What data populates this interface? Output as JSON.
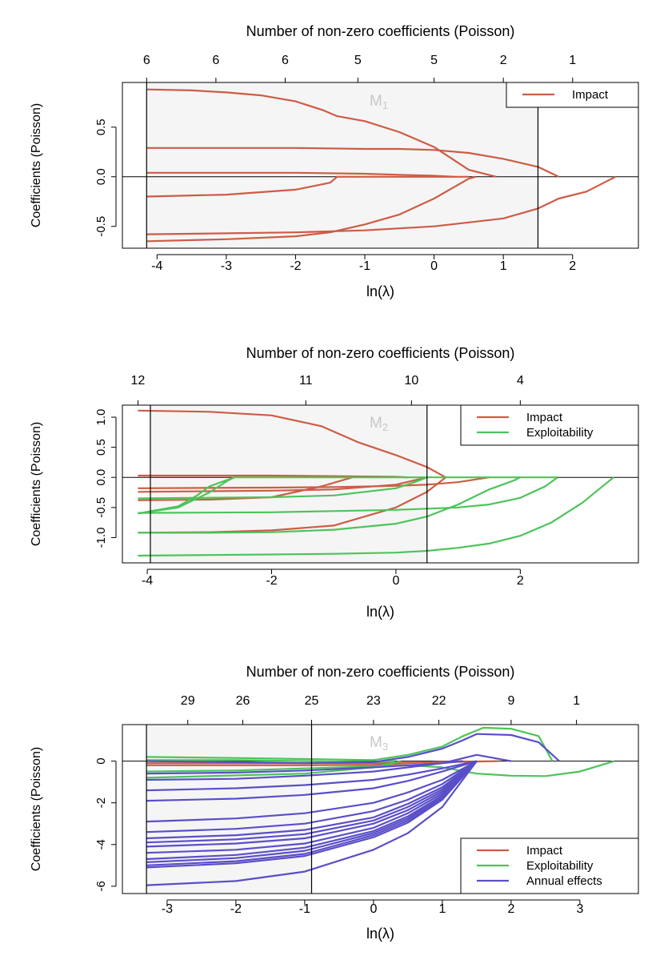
{
  "chart_data": [
    {
      "type": "line",
      "title": "Number of non-zero coefficients (Poisson)",
      "panel_label": {
        "main": "M",
        "sub": "1"
      },
      "xlabel": "ln(λ)",
      "ylabel": "Coefficients (Poisson)",
      "xlim": [
        -4.5,
        2.95
      ],
      "ylim": [
        -0.72,
        0.95
      ],
      "xticks": [
        -4,
        -3,
        -2,
        -1,
        0,
        1,
        2
      ],
      "yticks": [
        -0.5,
        0.0,
        0.5
      ],
      "ytick_labels": [
        "-0.5",
        "0.0",
        "0.5"
      ],
      "top_ticks": {
        "x": [
          -4.15,
          -3.15,
          -2.15,
          -1.1,
          0.0,
          1.0,
          2.0
        ],
        "labels": [
          "6",
          "6",
          "6",
          "5",
          "5",
          "2",
          "1"
        ]
      },
      "vlines": [
        -4.15,
        1.5
      ],
      "shaded_range": [
        -4.15,
        1.5
      ],
      "legend": [
        "Impact"
      ],
      "legend_position": "top-right",
      "series": [
        {
          "name": "Impact",
          "x": [
            -4.15,
            -3.5,
            -3,
            -2.5,
            -2,
            -1.6,
            -1.4,
            -1,
            -0.5,
            0,
            0.5,
            0.9
          ],
          "y": [
            0.88,
            0.87,
            0.85,
            0.82,
            0.76,
            0.67,
            0.61,
            0.56,
            0.45,
            0.3,
            0.07,
            0
          ]
        },
        {
          "name": "Impact",
          "x": [
            -4.15,
            -3,
            -2,
            -1,
            -0.5,
            0,
            0.5,
            1,
            1.5,
            1.8
          ],
          "y": [
            0.29,
            0.29,
            0.29,
            0.28,
            0.28,
            0.27,
            0.24,
            0.18,
            0.1,
            0
          ]
        },
        {
          "name": "Impact",
          "x": [
            -4.15,
            -3,
            -2,
            -1,
            -0.5,
            0,
            0.3
          ],
          "y": [
            0.04,
            0.04,
            0.04,
            0.03,
            0.02,
            0.01,
            0
          ]
        },
        {
          "name": "Impact",
          "x": [
            -4.15,
            -3,
            -2,
            -1.5,
            -1.4,
            0.5
          ],
          "y": [
            -0.2,
            -0.18,
            -0.13,
            -0.06,
            0,
            0
          ]
        },
        {
          "name": "Impact",
          "x": [
            -4.15,
            -3,
            -2,
            -1.5,
            -1,
            -0.5,
            0,
            0.3,
            0.5,
            0.6
          ],
          "y": [
            -0.65,
            -0.63,
            -0.6,
            -0.56,
            -0.48,
            -0.38,
            -0.22,
            -0.1,
            -0.02,
            0
          ]
        },
        {
          "name": "Impact",
          "x": [
            -4.15,
            -3,
            -2,
            -1,
            0,
            0.5,
            1,
            1.5,
            1.8,
            2.2,
            2.62
          ],
          "y": [
            -0.58,
            -0.57,
            -0.56,
            -0.54,
            -0.5,
            -0.46,
            -0.42,
            -0.32,
            -0.22,
            -0.15,
            0
          ]
        }
      ]
    },
    {
      "type": "line",
      "title": "Number of non-zero coefficients (Poisson)",
      "panel_label": {
        "main": "M",
        "sub": "2"
      },
      "xlabel": "ln(λ)",
      "ylabel": "Coefficients (Poisson)",
      "xlim": [
        -4.4,
        3.9
      ],
      "ylim": [
        -1.42,
        1.2
      ],
      "xticks": [
        -4,
        -2,
        0,
        2
      ],
      "yticks": [
        -1.0,
        -0.5,
        0.0,
        0.5,
        1.0
      ],
      "ytick_labels": [
        "-1.0",
        "-0.5",
        "0.0",
        "0.5",
        "1.0"
      ],
      "top_ticks": {
        "x": [
          -4.15,
          -1.45,
          0.25,
          2.0
        ],
        "labels": [
          "12",
          "11",
          "10",
          "4"
        ]
      },
      "vlines": [
        -3.95,
        0.5
      ],
      "shaded_range": [
        -3.95,
        0.5
      ],
      "legend": [
        "Impact",
        "Exploitability"
      ],
      "legend_position": "top-right",
      "series": [
        {
          "name": "Impact",
          "x": [
            -4.15,
            -3,
            -2,
            -1.2,
            -0.6,
            0,
            0.5,
            0.8
          ],
          "y": [
            1.11,
            1.09,
            1.03,
            0.85,
            0.58,
            0.37,
            0.17,
            0
          ]
        },
        {
          "name": "Impact",
          "x": [
            -4.15,
            -2,
            0,
            0.2
          ],
          "y": [
            0.03,
            0.03,
            0.01,
            0
          ]
        },
        {
          "name": "Impact",
          "x": [
            -4.15,
            -2,
            -1,
            0,
            0.5,
            1,
            1.5
          ],
          "y": [
            -0.18,
            -0.17,
            -0.16,
            -0.14,
            -0.12,
            -0.08,
            0
          ]
        },
        {
          "name": "Impact",
          "x": [
            -4.15,
            -3,
            -2,
            -1,
            0,
            0.5
          ],
          "y": [
            -0.24,
            -0.23,
            -0.22,
            -0.2,
            -0.12,
            0
          ]
        },
        {
          "name": "Impact",
          "x": [
            -4.15,
            -3,
            -2,
            -1.2,
            -0.7
          ],
          "y": [
            -0.38,
            -0.37,
            -0.33,
            -0.15,
            0
          ]
        },
        {
          "name": "Impact",
          "x": [
            -4.15,
            -3,
            -2,
            -1,
            -0.5,
            0,
            0.5,
            0.8
          ],
          "y": [
            -0.92,
            -0.91,
            -0.88,
            -0.8,
            -0.65,
            -0.5,
            -0.24,
            0
          ]
        },
        {
          "name": "Exploitability",
          "x": [
            -4.15,
            -3.5,
            -3,
            -2.7,
            -2.6
          ],
          "y": [
            -0.6,
            -0.5,
            -0.25,
            -0.05,
            0
          ]
        },
        {
          "name": "Exploitability",
          "x": [
            -4.15,
            -3.5,
            -3.2,
            -3,
            -2.6,
            2.6
          ],
          "y": [
            -0.6,
            -0.48,
            -0.3,
            -0.15,
            0,
            0
          ]
        },
        {
          "name": "Exploitability",
          "x": [
            -4.15,
            -2,
            -1,
            0,
            0.3,
            0.5
          ],
          "y": [
            -0.35,
            -0.33,
            -0.3,
            -0.18,
            -0.08,
            0
          ]
        },
        {
          "name": "Exploitability",
          "x": [
            -4.15,
            -2,
            -1,
            0,
            1,
            1.5,
            2,
            2.4,
            2.6
          ],
          "y": [
            -0.59,
            -0.58,
            -0.56,
            -0.54,
            -0.5,
            -0.45,
            -0.34,
            -0.15,
            0
          ]
        },
        {
          "name": "Exploitability",
          "x": [
            -4.15,
            -3,
            -2,
            -1,
            0,
            0.5,
            1,
            1.5,
            1.9,
            2.0
          ],
          "y": [
            -0.92,
            -0.92,
            -0.91,
            -0.87,
            -0.77,
            -0.65,
            -0.45,
            -0.2,
            -0.05,
            0
          ]
        },
        {
          "name": "Exploitability",
          "x": [
            -4.15,
            -3,
            -2,
            -1,
            0,
            0.5,
            1,
            1.5,
            2,
            2.5,
            3,
            3.5
          ],
          "y": [
            -1.3,
            -1.29,
            -1.28,
            -1.27,
            -1.25,
            -1.22,
            -1.17,
            -1.1,
            -0.97,
            -0.75,
            -0.42,
            0
          ]
        }
      ]
    },
    {
      "type": "line",
      "title": "Number of non-zero coefficients (Poisson)",
      "panel_label": {
        "main": "M",
        "sub": "3"
      },
      "xlabel": "ln(λ)",
      "ylabel": "Coefficients (Poisson)",
      "xlim": [
        -3.65,
        3.85
      ],
      "ylim": [
        -6.35,
        1.75
      ],
      "xticks": [
        -3,
        -2,
        -1,
        0,
        1,
        2,
        3
      ],
      "yticks": [
        -6,
        -4,
        -2,
        0
      ],
      "ytick_labels": [
        "-6",
        "-4",
        "-2",
        "0"
      ],
      "top_ticks": {
        "x": [
          -2.7,
          -1.9,
          -0.9,
          0.0,
          0.95,
          2.0,
          2.95
        ],
        "labels": [
          "29",
          "26",
          "25",
          "23",
          "22",
          "9",
          "1"
        ]
      },
      "vlines": [
        -3.3,
        -0.9
      ],
      "shaded_range": [
        -3.3,
        -0.9
      ],
      "legend": [
        "Impact",
        "Exploitability",
        "Annual effects"
      ],
      "legend_position": "bottom-right",
      "series": [
        {
          "name": "Impact",
          "x": [
            -3.3,
            -1,
            0,
            1,
            1.8
          ],
          "y": [
            -0.1,
            -0.1,
            -0.1,
            -0.05,
            0
          ]
        },
        {
          "name": "Impact",
          "x": [
            -3.3,
            -1,
            0,
            0.5,
            1.3
          ],
          "y": [
            -0.2,
            -0.2,
            -0.18,
            -0.1,
            0
          ]
        },
        {
          "name": "Exploitability",
          "x": [
            -3.3,
            -2,
            -1,
            0,
            0.5,
            1,
            1.3,
            1.6,
            2,
            2.4,
            2.6
          ],
          "y": [
            0.2,
            0.15,
            0.1,
            0.05,
            0.3,
            0.7,
            1.2,
            1.6,
            1.55,
            1.2,
            0
          ]
        },
        {
          "name": "Exploitability",
          "x": [
            -3.3,
            -2,
            -1,
            0,
            0.5,
            1,
            1.5,
            2,
            2.5,
            3,
            3.5
          ],
          "y": [
            -0.5,
            -0.45,
            -0.35,
            -0.25,
            -0.2,
            -0.3,
            -0.6,
            -0.7,
            -0.72,
            -0.5,
            0
          ]
        },
        {
          "name": "Exploitability",
          "x": [
            -3.3,
            -1,
            0,
            0.4
          ],
          "y": [
            -0.8,
            -0.6,
            -0.3,
            0
          ]
        },
        {
          "name": "Exploitability",
          "x": [
            -3.3,
            -2,
            -1,
            0,
            0.3
          ],
          "y": [
            0.05,
            0.05,
            0,
            -0.05,
            0
          ]
        },
        {
          "name": "Annual effects",
          "x": [
            -3.3,
            -2,
            -1,
            0,
            0.5,
            1,
            1.3,
            1.5,
            2,
            2.4,
            2.7
          ],
          "y": [
            0.0,
            -0.05,
            -0.1,
            -0.05,
            0.2,
            0.6,
            1.0,
            1.3,
            1.25,
            0.9,
            0
          ]
        },
        {
          "name": "Annual effects",
          "x": [
            -3.3,
            -2,
            -1,
            0,
            1,
            1.5,
            2
          ],
          "y": [
            -0.6,
            -0.55,
            -0.45,
            -0.3,
            -0.1,
            0.3,
            0
          ]
        },
        {
          "name": "Annual effects",
          "x": [
            -3.3,
            -2,
            -1,
            0,
            0.5,
            1,
            1.3
          ],
          "y": [
            -0.9,
            -0.85,
            -0.7,
            -0.5,
            -0.3,
            -0.1,
            0
          ]
        },
        {
          "name": "Annual effects",
          "x": [
            -3.3,
            -2,
            -1,
            0,
            0.5,
            1,
            1.5
          ],
          "y": [
            -1.4,
            -1.3,
            -1.15,
            -0.9,
            -0.65,
            -0.35,
            0
          ]
        },
        {
          "name": "Annual effects",
          "x": [
            -3.3,
            -2,
            -1,
            0,
            0.5,
            1,
            1.5
          ],
          "y": [
            -1.9,
            -1.8,
            -1.62,
            -1.3,
            -0.95,
            -0.5,
            0
          ]
        },
        {
          "name": "Annual effects",
          "x": [
            -3.3,
            -2,
            -1,
            0,
            0.5,
            1,
            1.5
          ],
          "y": [
            -2.9,
            -2.75,
            -2.5,
            -2.0,
            -1.5,
            -0.9,
            0
          ]
        },
        {
          "name": "Annual effects",
          "x": [
            -3.3,
            -2,
            -1,
            0,
            0.5,
            1,
            1.5
          ],
          "y": [
            -3.4,
            -3.25,
            -3.0,
            -2.4,
            -1.85,
            -1.1,
            0
          ]
        },
        {
          "name": "Annual effects",
          "x": [
            -3.3,
            -2,
            -1,
            0,
            0.5,
            1,
            1.5
          ],
          "y": [
            -3.7,
            -3.55,
            -3.3,
            -2.7,
            -2.05,
            -1.25,
            0
          ]
        },
        {
          "name": "Annual effects",
          "x": [
            -3.3,
            -2,
            -1,
            0,
            0.5,
            1,
            1.5
          ],
          "y": [
            -3.9,
            -3.75,
            -3.5,
            -2.85,
            -2.2,
            -1.35,
            0
          ]
        },
        {
          "name": "Annual effects",
          "x": [
            -3.3,
            -2,
            -1,
            0,
            0.5,
            1,
            1.5
          ],
          "y": [
            -4.1,
            -3.95,
            -3.7,
            -3.0,
            -2.35,
            -1.45,
            0
          ]
        },
        {
          "name": "Annual effects",
          "x": [
            -3.3,
            -2,
            -1,
            0,
            0.5,
            1,
            1.5
          ],
          "y": [
            -4.4,
            -4.25,
            -3.95,
            -3.2,
            -2.5,
            -1.55,
            0
          ]
        },
        {
          "name": "Annual effects",
          "x": [
            -3.3,
            -2,
            -1,
            0,
            0.5,
            1,
            1.5
          ],
          "y": [
            -4.7,
            -4.5,
            -4.15,
            -3.35,
            -2.65,
            -1.65,
            0
          ]
        },
        {
          "name": "Annual effects",
          "x": [
            -3.3,
            -2,
            -1,
            0,
            0.5,
            1,
            1.5
          ],
          "y": [
            -4.85,
            -4.65,
            -4.3,
            -3.45,
            -2.75,
            -1.72,
            0
          ]
        },
        {
          "name": "Annual effects",
          "x": [
            -3.3,
            -2,
            -1,
            0,
            0.5,
            1,
            1.5
          ],
          "y": [
            -5.0,
            -4.8,
            -4.45,
            -3.55,
            -2.85,
            -1.8,
            0
          ]
        },
        {
          "name": "Annual effects",
          "x": [
            -3.3,
            -2,
            -1,
            0,
            0.5,
            1,
            1.5
          ],
          "y": [
            -5.1,
            -4.9,
            -4.55,
            -3.65,
            -2.95,
            -1.85,
            0
          ]
        },
        {
          "name": "Annual effects",
          "x": [
            -3.3,
            -2,
            -1,
            0,
            0.5,
            1,
            1.5
          ],
          "y": [
            -5.95,
            -5.75,
            -5.3,
            -4.25,
            -3.45,
            -2.2,
            0
          ]
        }
      ]
    }
  ],
  "colors": {
    "Impact": "#cd5c45",
    "Exploitability": "#4cc45a",
    "Annual effects": "#5a4fc8",
    "shade": "#f5f5f5",
    "panel_label": "#c8c8c8"
  }
}
